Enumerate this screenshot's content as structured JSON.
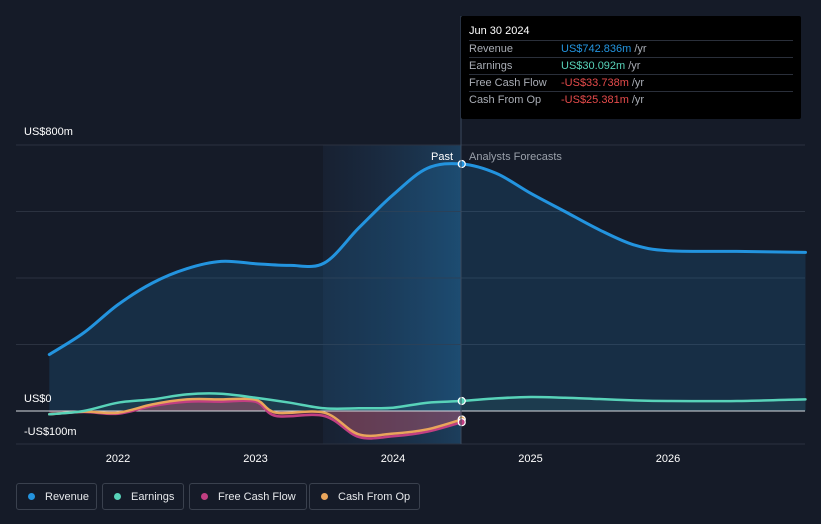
{
  "chart_data": {
    "type": "line",
    "x_ticks": [
      "2022",
      "2023",
      "2024",
      "2025",
      "2026"
    ],
    "y_ticks": [
      {
        "label": "US$800m",
        "value": 800
      },
      {
        "label": "US$0",
        "value": 0
      },
      {
        "label": "-US$100m",
        "value": -100
      }
    ],
    "ylim": [
      -100,
      800
    ],
    "past_label": "Past",
    "forecast_label": "Analysts Forecasts",
    "series": [
      {
        "name": "Revenue",
        "color": "#2394df",
        "points": [
          [
            2021.5,
            170
          ],
          [
            2021.75,
            235
          ],
          [
            2022.0,
            320
          ],
          [
            2022.25,
            385
          ],
          [
            2022.5,
            428
          ],
          [
            2022.75,
            450
          ],
          [
            2023.0,
            443
          ],
          [
            2023.25,
            438
          ],
          [
            2023.5,
            445
          ],
          [
            2023.75,
            550
          ],
          [
            2024.0,
            650
          ],
          [
            2024.25,
            730
          ],
          [
            2024.5,
            742.8
          ],
          [
            2024.75,
            715
          ],
          [
            2025.0,
            655
          ],
          [
            2025.25,
            600
          ],
          [
            2025.5,
            545
          ],
          [
            2025.75,
            500
          ],
          [
            2026.0,
            482
          ],
          [
            2026.5,
            480
          ],
          [
            2027.0,
            477
          ]
        ]
      },
      {
        "name": "Earnings",
        "color": "#58d3b9",
        "points": [
          [
            2021.5,
            -10
          ],
          [
            2021.75,
            0
          ],
          [
            2022.0,
            25
          ],
          [
            2022.25,
            35
          ],
          [
            2022.5,
            50
          ],
          [
            2022.75,
            52
          ],
          [
            2023.0,
            40
          ],
          [
            2023.25,
            25
          ],
          [
            2023.5,
            8
          ],
          [
            2023.75,
            8
          ],
          [
            2024.0,
            10
          ],
          [
            2024.25,
            25
          ],
          [
            2024.5,
            30.1
          ],
          [
            2024.75,
            38
          ],
          [
            2025.0,
            42
          ],
          [
            2025.25,
            40
          ],
          [
            2025.5,
            36
          ],
          [
            2025.75,
            32
          ],
          [
            2026.0,
            30
          ],
          [
            2026.5,
            30
          ],
          [
            2027.0,
            35
          ]
        ]
      },
      {
        "name": "Free Cash Flow",
        "color": "#c13f82",
        "points": [
          [
            2021.5,
            -10
          ],
          [
            2021.75,
            -3
          ],
          [
            2022.0,
            -8
          ],
          [
            2022.25,
            15
          ],
          [
            2022.5,
            28
          ],
          [
            2022.75,
            28
          ],
          [
            2023.0,
            28
          ],
          [
            2023.15,
            -15
          ],
          [
            2023.5,
            -15
          ],
          [
            2023.75,
            -78
          ],
          [
            2024.0,
            -76
          ],
          [
            2024.25,
            -62
          ],
          [
            2024.5,
            -33.7
          ]
        ]
      },
      {
        "name": "Cash From Op",
        "color": "#e9a55b",
        "points": [
          [
            2021.5,
            -10
          ],
          [
            2021.75,
            -2
          ],
          [
            2022.0,
            -5
          ],
          [
            2022.25,
            20
          ],
          [
            2022.5,
            35
          ],
          [
            2022.75,
            35
          ],
          [
            2023.0,
            34
          ],
          [
            2023.15,
            -5
          ],
          [
            2023.5,
            -5
          ],
          [
            2023.75,
            -70
          ],
          [
            2024.0,
            -68
          ],
          [
            2024.25,
            -55
          ],
          [
            2024.5,
            -25.4
          ]
        ]
      }
    ]
  },
  "tooltip": {
    "date": "Jun 30 2024",
    "rows": [
      {
        "label": "Revenue",
        "value": "US$742.836m",
        "unit": "/yr",
        "color": "#2394df"
      },
      {
        "label": "Earnings",
        "value": "US$30.092m",
        "unit": "/yr",
        "color": "#58d3b9"
      },
      {
        "label": "Free Cash Flow",
        "value": "-US$33.738m",
        "unit": "/yr",
        "color": "#e64b4b"
      },
      {
        "label": "Cash From Op",
        "value": "-US$25.381m",
        "unit": "/yr",
        "color": "#e64b4b"
      }
    ]
  },
  "legend": [
    {
      "label": "Revenue",
      "color": "#2394df"
    },
    {
      "label": "Earnings",
      "color": "#58d3b9"
    },
    {
      "label": "Free Cash Flow",
      "color": "#c13f82"
    },
    {
      "label": "Cash From Op",
      "color": "#e9a55b"
    }
  ]
}
